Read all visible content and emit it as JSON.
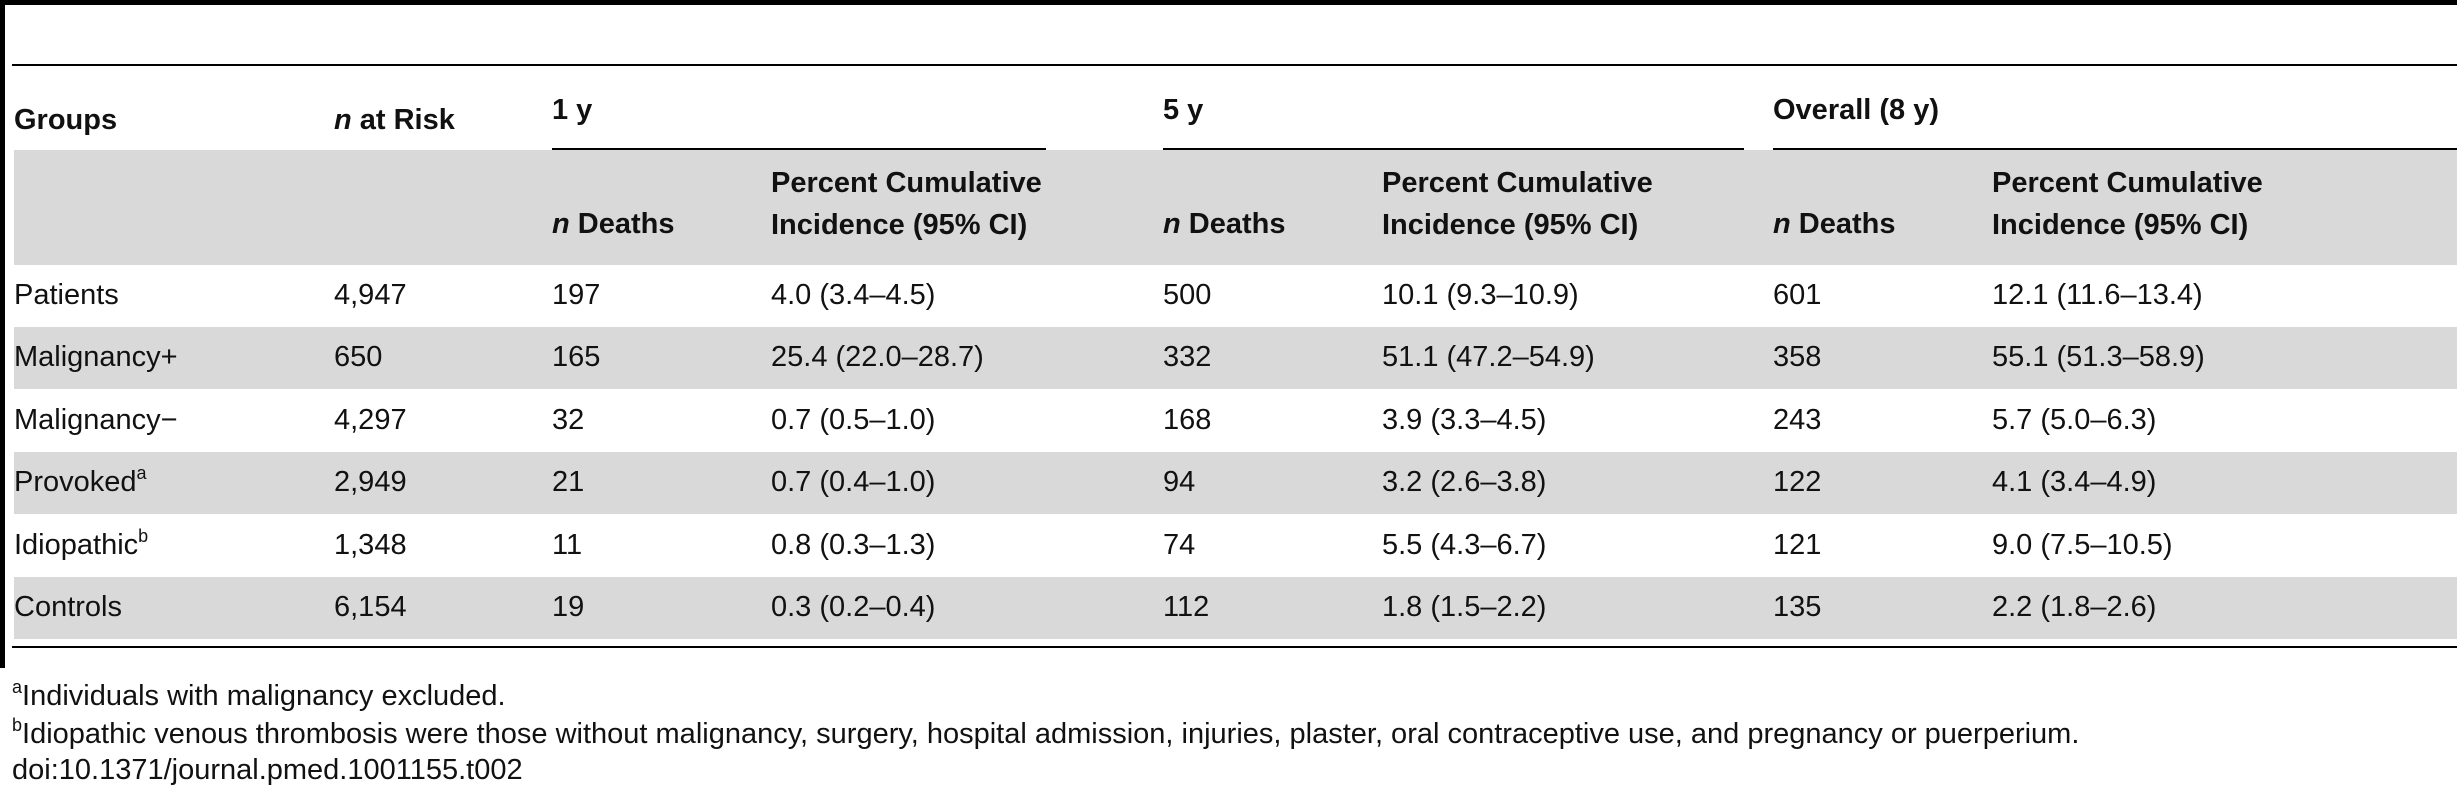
{
  "table": {
    "columns": {
      "groups": "Groups",
      "n_at_risk_italic": "n",
      "n_at_risk_rest": " at Risk",
      "group_1y": "1 y",
      "group_5y": "5 y",
      "group_overall": "Overall (8 y)",
      "n_deaths_italic": "n",
      "n_deaths_rest": " Deaths",
      "cum_inc_line1": "Percent Cumulative",
      "cum_inc_line2": "Incidence (95% CI)"
    },
    "rows": [
      {
        "group": "Patients",
        "sup": "",
        "n_risk": "4,947",
        "d1": "197",
        "c1": "4.0 (3.4–4.5)",
        "d5": "500",
        "c5": "10.1 (9.3–10.9)",
        "d8": "601",
        "c8": "12.1 (11.6–13.4)"
      },
      {
        "group": "Malignancy+",
        "sup": "",
        "n_risk": "650",
        "d1": "165",
        "c1": "25.4 (22.0–28.7)",
        "d5": "332",
        "c5": "51.1 (47.2–54.9)",
        "d8": "358",
        "c8": "55.1 (51.3–58.9)"
      },
      {
        "group": "Malignancy−",
        "sup": "",
        "n_risk": "4,297",
        "d1": "32",
        "c1": "0.7 (0.5–1.0)",
        "d5": "168",
        "c5": "3.9 (3.3–4.5)",
        "d8": "243",
        "c8": "5.7 (5.0–6.3)"
      },
      {
        "group": "Provoked",
        "sup": "a",
        "n_risk": "2,949",
        "d1": "21",
        "c1": "0.7 (0.4–1.0)",
        "d5": "94",
        "c5": "3.2 (2.6–3.8)",
        "d8": "122",
        "c8": "4.1 (3.4–4.9)"
      },
      {
        "group": "Idiopathic",
        "sup": "b",
        "n_risk": "1,348",
        "d1": "11",
        "c1": "0.8 (0.3–1.3)",
        "d5": "74",
        "c5": "5.5 (4.3–6.7)",
        "d8": "121",
        "c8": "9.0 (7.5–10.5)"
      },
      {
        "group": "Controls",
        "sup": "",
        "n_risk": "6,154",
        "d1": "19",
        "c1": "0.3 (0.2–0.4)",
        "d5": "112",
        "c5": "1.8 (1.5–2.2)",
        "d8": "135",
        "c8": "2.2 (1.8–2.6)"
      }
    ]
  },
  "footnotes": {
    "a_mark": "a",
    "a_text": "Individuals with malignancy excluded.",
    "b_mark": "b",
    "b_text": "Idiopathic venous thrombosis were those without malignancy, surgery, hospital admission, injuries, plaster, oral contraceptive use, and pregnancy or puerperium.",
    "doi": "doi:10.1371/journal.pmed.1001155.t002"
  }
}
